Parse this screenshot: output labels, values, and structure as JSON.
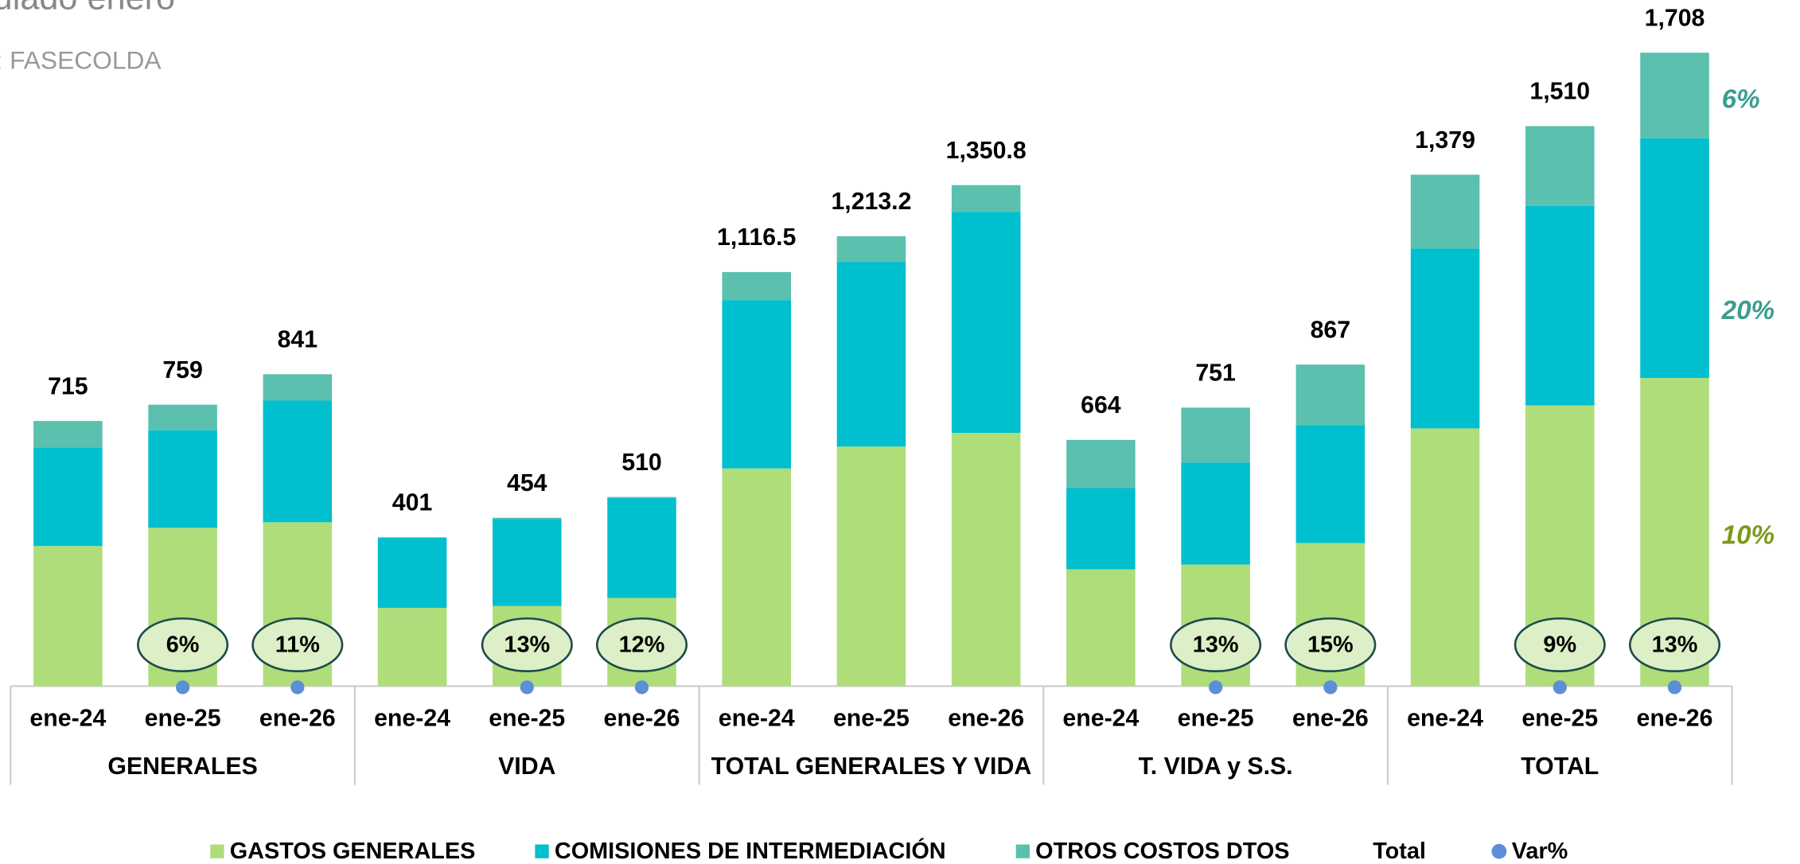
{
  "chart_data": {
    "type": "stacked_bar",
    "title": "ulado enero",
    "subtitle": ": FASECOLDA",
    "groups": [
      "GENERALES",
      "VIDA",
      "TOTAL GENERALES Y VIDA",
      "T. VIDA y S.S.",
      "TOTAL"
    ],
    "categories": [
      "ene-24",
      "ene-25",
      "ene-26",
      "ene-24",
      "ene-25",
      "ene-26",
      "ene-24",
      "ene-25",
      "ene-26",
      "ene-24",
      "ene-25",
      "ene-26",
      "ene-24",
      "ene-25",
      "ene-26"
    ],
    "ylim": [
      0,
      1850
    ],
    "series": [
      {
        "name": "GASTOS GENERALES",
        "color": "#aedd7a",
        "values": [
          378,
          427,
          442,
          211,
          216,
          238,
          587,
          646,
          683,
          315,
          328,
          386,
          695,
          757,
          831
        ]
      },
      {
        "name": "COMISIONES DE INTERMEDIACIÓN",
        "color": "#00bfcf",
        "values": [
          266,
          263,
          328,
          190,
          235,
          269,
          454,
          498,
          596,
          219,
          275,
          318,
          485,
          538,
          646
        ]
      },
      {
        "name": "OTROS COSTOS DTOS",
        "color": "#5bc0ae",
        "values": [
          71,
          69,
          71,
          0,
          3,
          3,
          75.5,
          69.2,
          71.8,
          130,
          148,
          163,
          199,
          215,
          231
        ]
      },
      {
        "name": "Total",
        "values": [
          715,
          759,
          841,
          401,
          454,
          510,
          1116.5,
          1213.2,
          1350.8,
          664,
          751,
          867,
          1379,
          1510,
          1708
        ],
        "value_labels": [
          "715",
          "759",
          "841",
          "401",
          "454",
          "510",
          "1,116.5",
          "1,213.2",
          "1,350.8",
          "664",
          "751",
          "867",
          "1,379",
          "1,510",
          "1,708"
        ]
      },
      {
        "name": "Var%",
        "color": "#5b8fd6",
        "values": [
          null,
          6,
          11,
          null,
          13,
          12,
          null,
          null,
          null,
          null,
          13,
          15,
          null,
          9,
          13
        ],
        "value_labels": [
          null,
          "6%",
          "11%",
          null,
          "13%",
          "12%",
          null,
          null,
          null,
          null,
          "13%",
          "15%",
          null,
          "9%",
          "13%"
        ]
      }
    ],
    "annotations": [
      {
        "text": "6%",
        "color": "#3a9e8f"
      },
      {
        "text": "20%",
        "color": "#3a9e8f"
      },
      {
        "text": "10%",
        "color": "#7a9a1a"
      }
    ]
  }
}
